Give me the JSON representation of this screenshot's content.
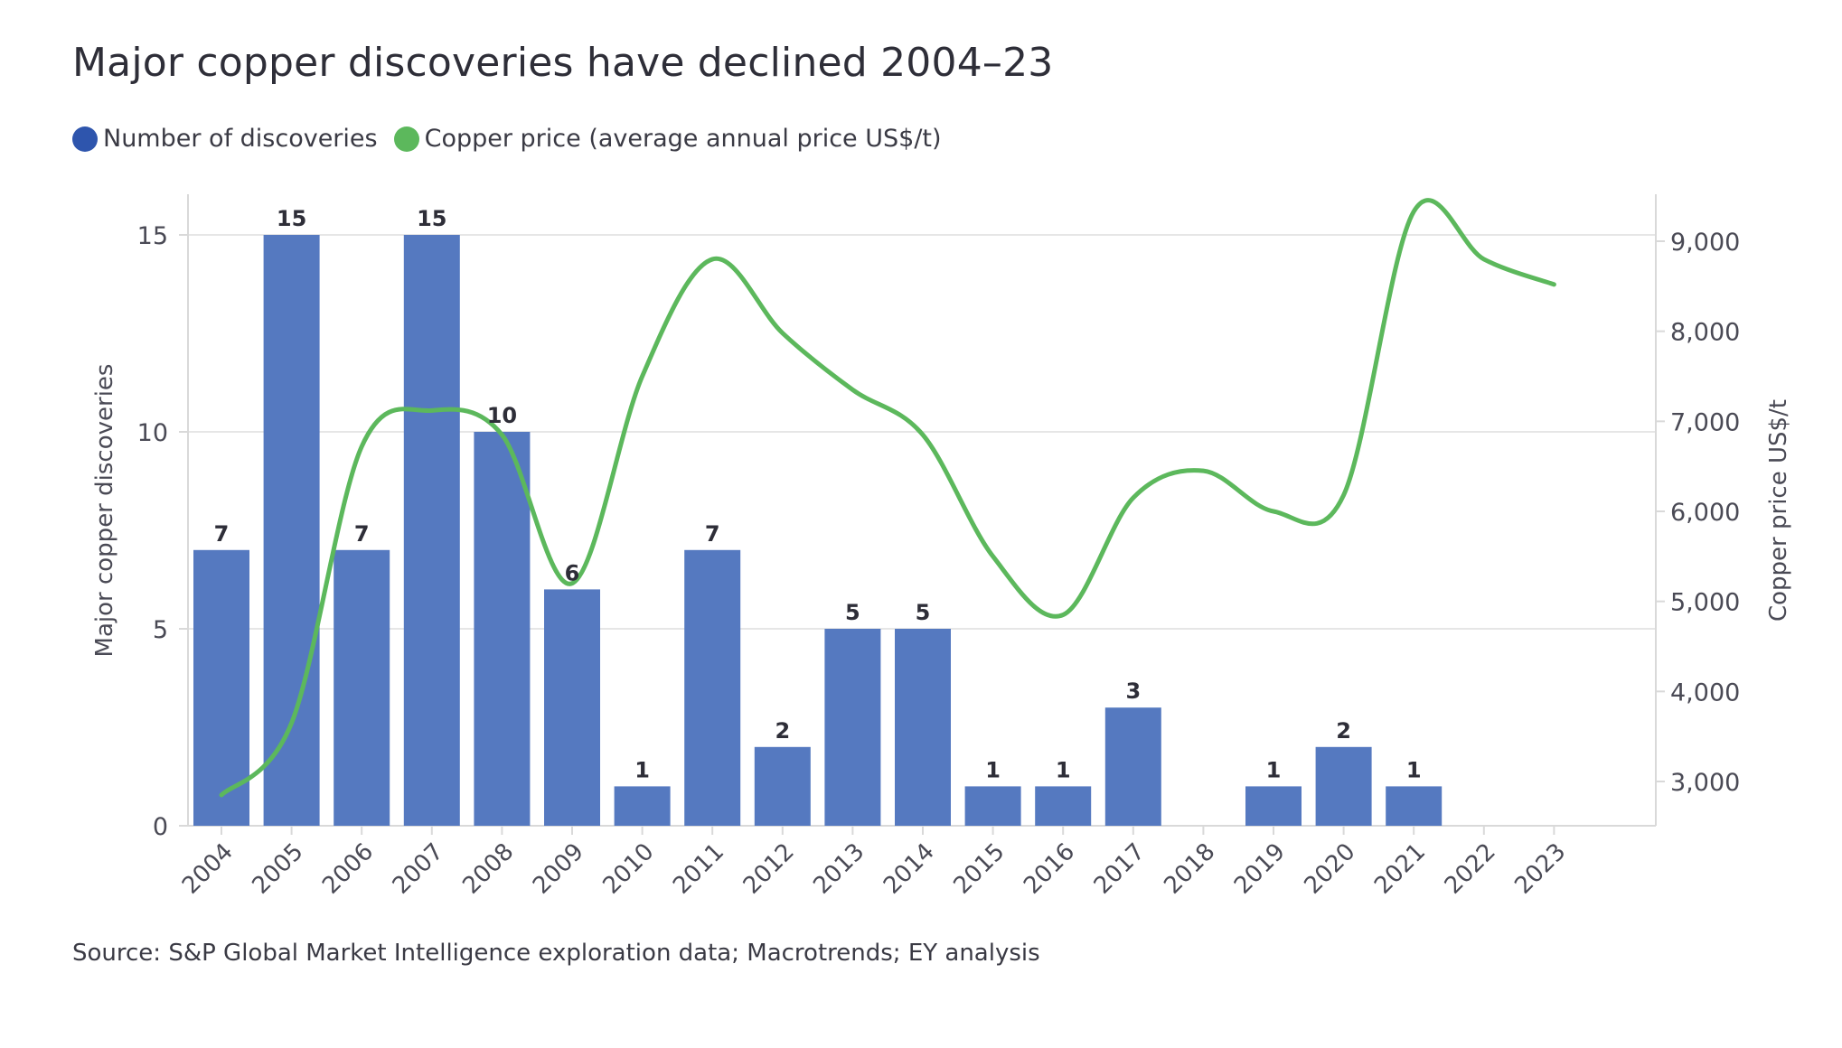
{
  "title": "Major copper discoveries have declined 2004–23",
  "legend": [
    {
      "label": "Number of discoveries",
      "color": "#2e55ad"
    },
    {
      "label": "Copper price (average annual price US$/t)",
      "color": "#5cb85c"
    }
  ],
  "source": "Source: S&P Global Market Intelligence exploration data; Macrotrends; EY analysis",
  "chart_data": {
    "type": "bar",
    "categories": [
      "2004",
      "2005",
      "2006",
      "2007",
      "2008",
      "2009",
      "2010",
      "2011",
      "2012",
      "2013",
      "2014",
      "2015",
      "2016",
      "2017",
      "2018",
      "2019",
      "2020",
      "2021",
      "2022",
      "2023"
    ],
    "series": [
      {
        "name": "Number of discoveries",
        "type": "bar",
        "axis": "left",
        "color": "#5579c0",
        "values": [
          7,
          15,
          7,
          15,
          10,
          6,
          1,
          7,
          2,
          5,
          5,
          1,
          1,
          3,
          0,
          1,
          2,
          1,
          0,
          0
        ],
        "data_labels": [
          "7",
          "15",
          "7",
          "15",
          "10",
          "6",
          "1",
          "7",
          "2",
          "5",
          "5",
          "1",
          "1",
          "3",
          "",
          "1",
          "2",
          "1",
          "",
          ""
        ]
      },
      {
        "name": "Copper price (average annual price US$/t)",
        "type": "line",
        "axis": "right",
        "color": "#5cb85c",
        "values": [
          2850,
          3650,
          6720,
          7120,
          6850,
          5200,
          7500,
          8800,
          7980,
          7350,
          6850,
          5500,
          4850,
          6150,
          6450,
          6000,
          6180,
          9330,
          8800,
          8520
        ]
      }
    ],
    "ylabel": "Major copper discoveries",
    "y2label": "Copper price US$/t",
    "ylim": [
      0,
      15
    ],
    "yticks": [
      0,
      5,
      10,
      15
    ],
    "y2lim": [
      2500,
      9500
    ],
    "y2ticks": [
      "3,000",
      "4,000",
      "5,000",
      "6,000",
      "7,000",
      "8,000",
      "9,000"
    ],
    "y2tick_values": [
      3000,
      4000,
      5000,
      6000,
      7000,
      8000,
      9000
    ],
    "grid": true,
    "legend_position": "top-left"
  }
}
